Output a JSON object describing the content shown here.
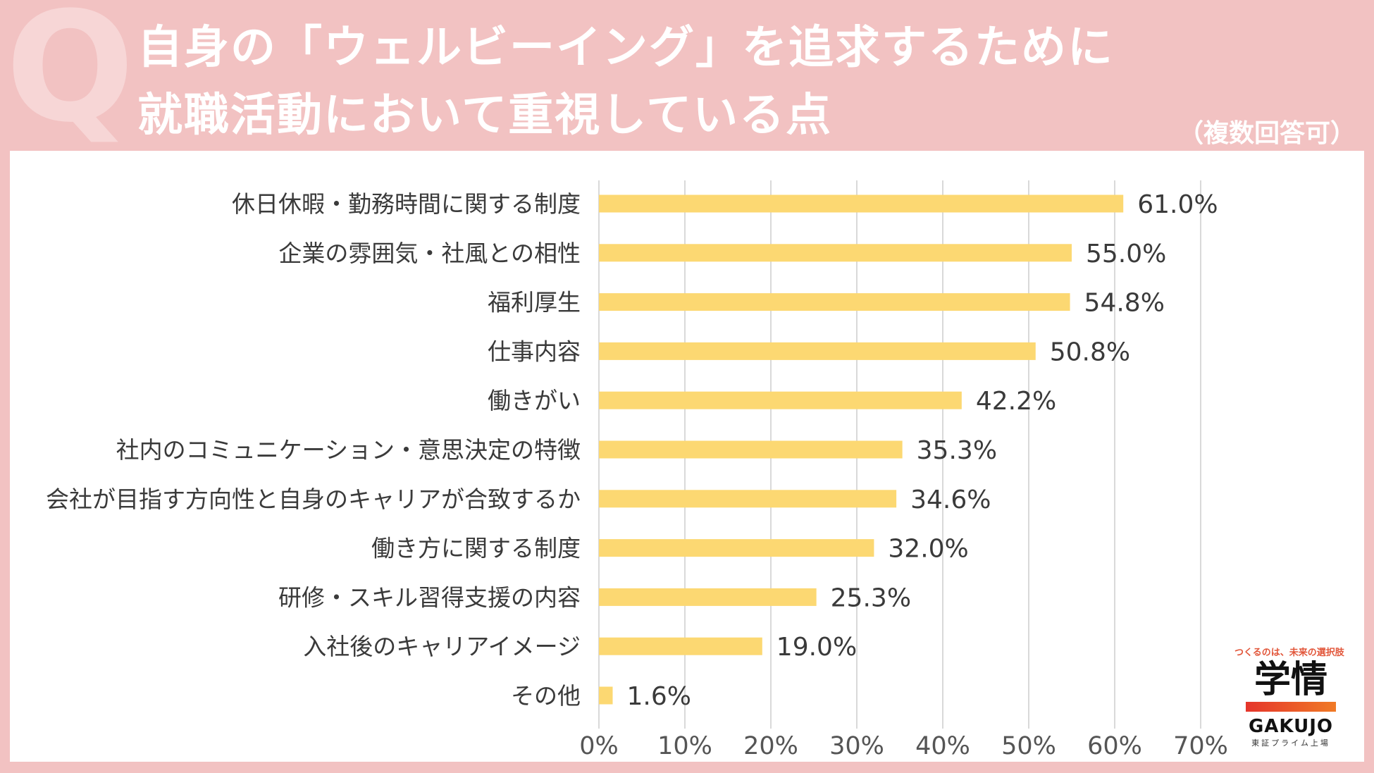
{
  "header": {
    "q_mark": "Q",
    "title_line1": "自身の「ウェルビーイング」を追求するために",
    "title_line2": "就職活動において重視している点",
    "note": "（複数回答可）"
  },
  "logo": {
    "tagline": "つくるのは、未来の選択肢",
    "kanji": "学情",
    "english": "GAKUJO",
    "sub": "東証プライム上場"
  },
  "chart_data": {
    "type": "bar",
    "orientation": "horizontal",
    "categories": [
      "休日休暇・勤務時間に関する制度",
      "企業の雰囲気・社風との相性",
      "福利厚生",
      "仕事内容",
      "働きがい",
      "社内のコミュニケーション・意思決定の特徴",
      "会社が目指す方向性と自身のキャリアが合致するか",
      "働き方に関する制度",
      "研修・スキル習得支援の内容",
      "入社後のキャリアイメージ",
      "その他"
    ],
    "values": [
      61.0,
      55.0,
      54.8,
      50.8,
      42.2,
      35.3,
      34.6,
      32.0,
      25.3,
      19.0,
      1.6
    ],
    "value_labels": [
      "61.0%",
      "55.0%",
      "54.8%",
      "50.8%",
      "42.2%",
      "35.3%",
      "34.6%",
      "32.0%",
      "25.3%",
      "19.0%",
      "1.6%"
    ],
    "xlim": [
      0,
      70
    ],
    "xticks": [
      "0%",
      "10%",
      "20%",
      "30%",
      "40%",
      "50%",
      "60%",
      "70%"
    ],
    "bar_color": "#fcd872",
    "grid_color": "#d9d9d9",
    "grid": true
  }
}
